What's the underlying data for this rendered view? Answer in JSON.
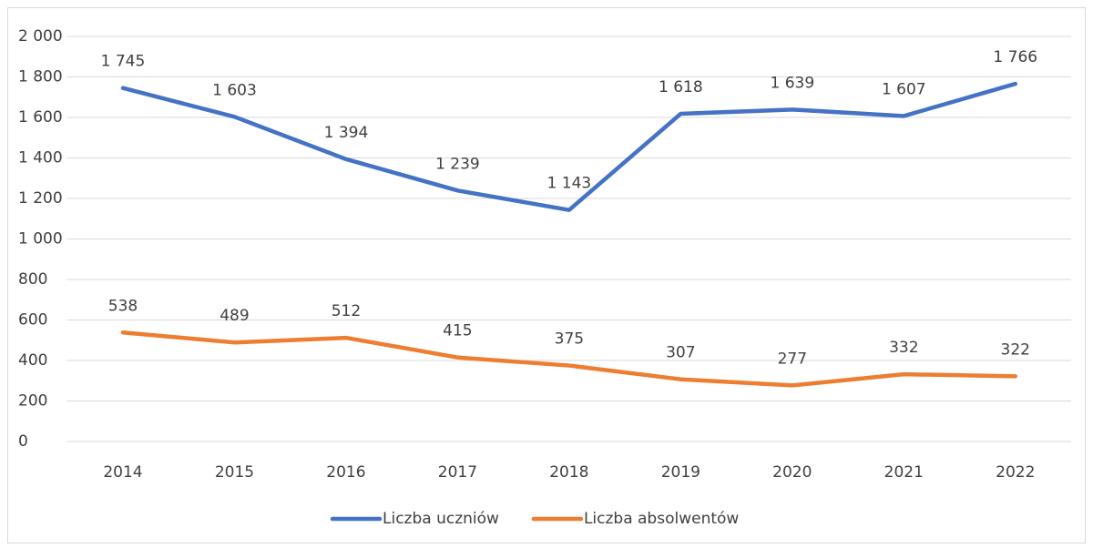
{
  "chart_data": {
    "type": "line",
    "categories": [
      "2014",
      "2015",
      "2016",
      "2017",
      "2018",
      "2019",
      "2020",
      "2021",
      "2022"
    ],
    "series": [
      {
        "name": "Liczba uczniów",
        "color": "#4472c4",
        "values": [
          1745,
          1603,
          1394,
          1239,
          1143,
          1618,
          1639,
          1607,
          1766
        ],
        "value_labels": [
          "1 745",
          "1 603",
          "1 394",
          "1 239",
          "1 143",
          "1 618",
          "1 639",
          "1 607",
          "1 766"
        ]
      },
      {
        "name": "Liczba absolwentów",
        "color": "#ed7d31",
        "values": [
          538,
          489,
          512,
          415,
          375,
          307,
          277,
          332,
          322
        ]
      }
    ],
    "ylim": [
      0,
      2000
    ],
    "yticks": [
      0,
      200,
      400,
      600,
      800,
      {
        "value": 1000,
        "label": "1 000"
      },
      {
        "value": 1200,
        "label": "1 200"
      },
      {
        "value": 1400,
        "label": "1 400"
      },
      {
        "value": 1600,
        "label": "1 600"
      },
      {
        "value": 1800,
        "label": "1 800"
      },
      {
        "value": 2000,
        "label": "2 000"
      }
    ],
    "grid": true,
    "legend": "bottom"
  }
}
